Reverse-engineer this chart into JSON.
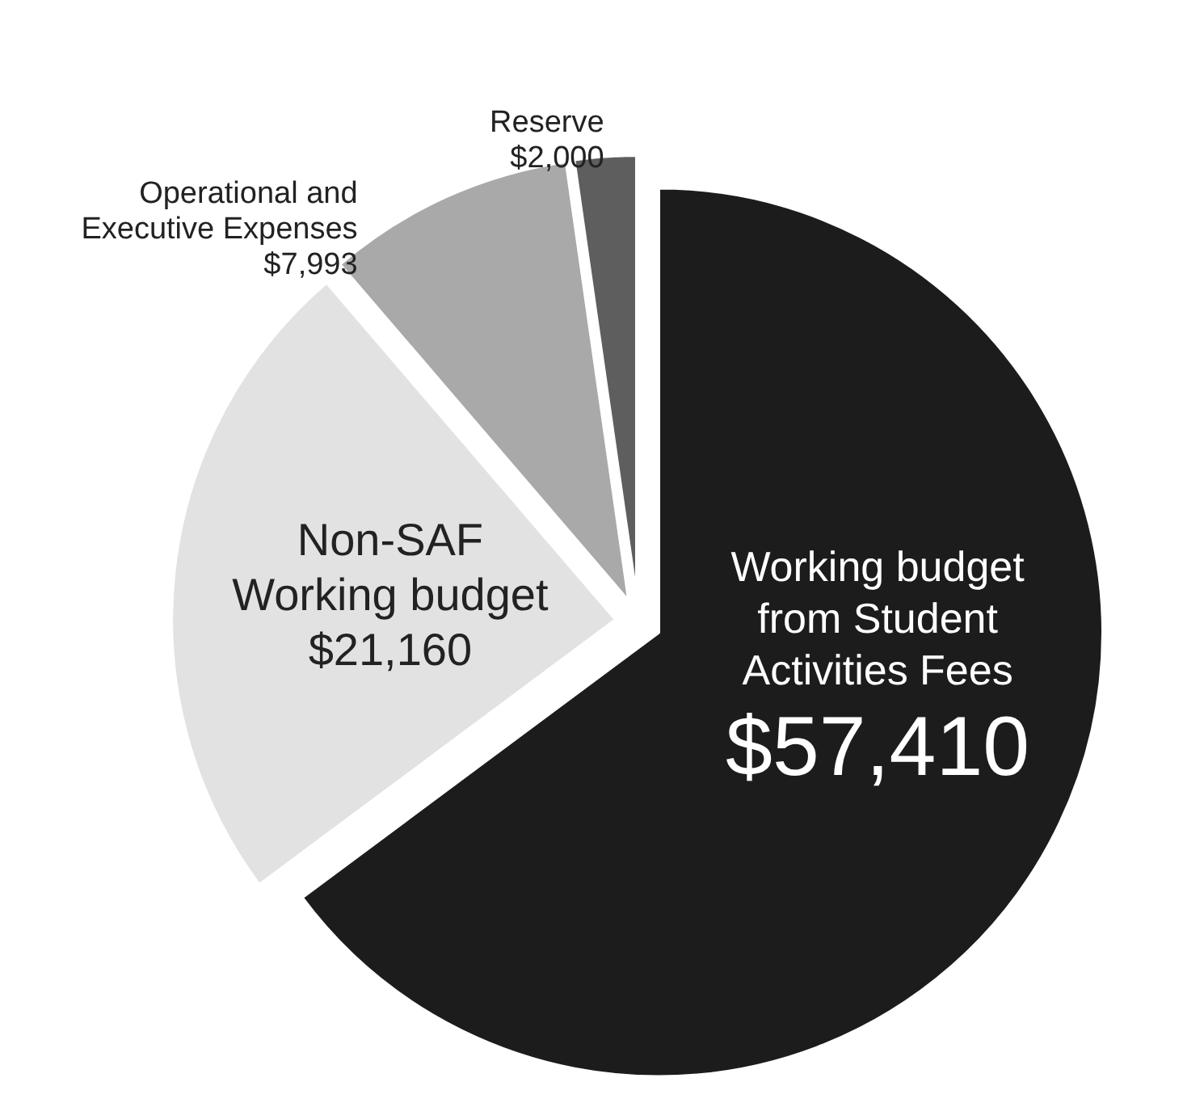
{
  "chart_data": {
    "type": "pie",
    "categories": [
      "Working budget from Student Activities Fees",
      "Non-SAF Working budget",
      "Operational and Executive Expenses",
      "Reserve"
    ],
    "values": [
      57410,
      21160,
      7993,
      2000
    ],
    "value_labels": [
      "$57,410",
      "$21,160",
      "$7,993",
      "$2,000"
    ],
    "colors": [
      "#1c1c1c",
      "#e2e2e2",
      "#a9a9a9",
      "#5e5e5e"
    ],
    "legend": false
  }
}
